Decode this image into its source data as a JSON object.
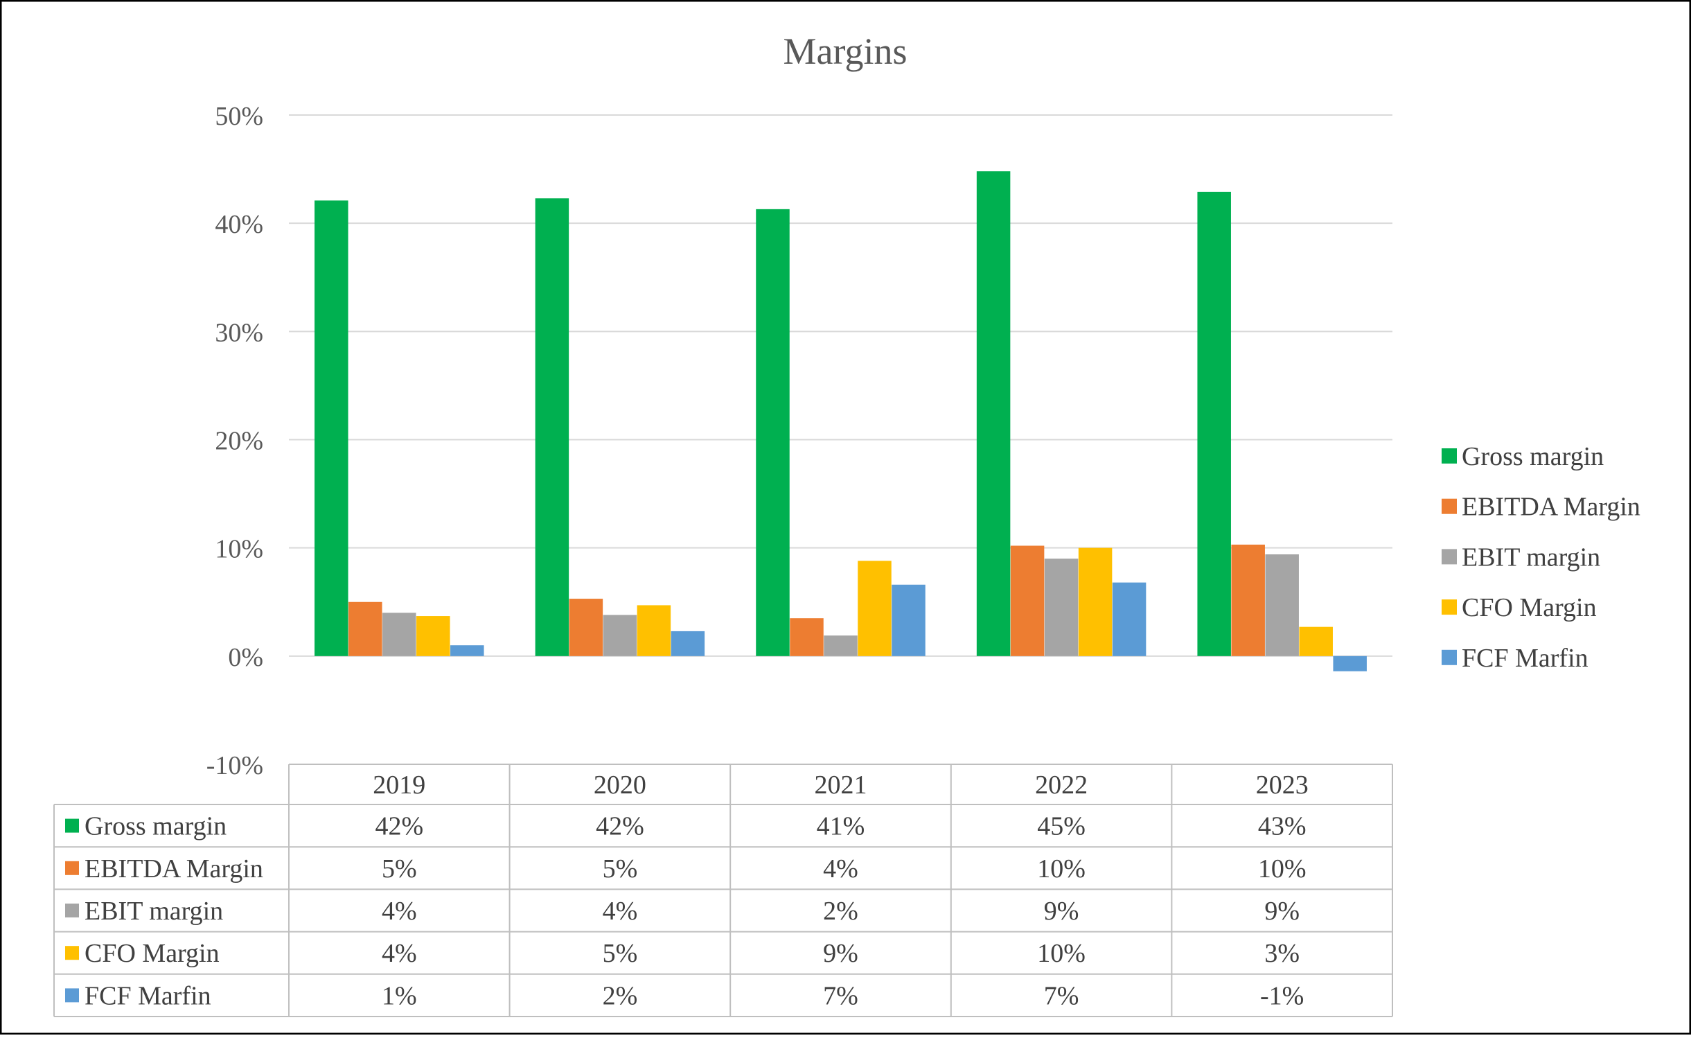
{
  "chart_data": {
    "type": "bar",
    "title": "Margins",
    "categories": [
      "2019",
      "2020",
      "2021",
      "2022",
      "2023"
    ],
    "series": [
      {
        "name": "Gross margin",
        "color": "#00B050",
        "values": [
          42.1,
          42.3,
          41.3,
          44.8,
          42.9
        ],
        "table_labels": [
          "42%",
          "42%",
          "41%",
          "45%",
          "43%"
        ]
      },
      {
        "name": "EBITDA Margin",
        "color": "#ED7D31",
        "values": [
          5.0,
          5.3,
          3.5,
          10.2,
          10.3
        ],
        "table_labels": [
          "5%",
          "5%",
          "4%",
          "10%",
          "10%"
        ]
      },
      {
        "name": "EBIT margin",
        "color": "#A5A5A5",
        "values": [
          4.0,
          3.8,
          1.9,
          9.0,
          9.4
        ],
        "table_labels": [
          "4%",
          "4%",
          "2%",
          "9%",
          "9%"
        ]
      },
      {
        "name": "CFO Margin",
        "color": "#FFC000",
        "values": [
          3.7,
          4.7,
          8.8,
          10.0,
          2.7
        ],
        "table_labels": [
          "4%",
          "5%",
          "9%",
          "10%",
          "3%"
        ]
      },
      {
        "name": "FCF Marfin",
        "color": "#5B9BD5",
        "values": [
          1.0,
          2.3,
          6.6,
          6.8,
          -1.4
        ],
        "table_labels": [
          "1%",
          "2%",
          "7%",
          "7%",
          "-1%"
        ]
      }
    ],
    "ylim": [
      -10,
      50
    ],
    "y_ticks": [
      50,
      40,
      30,
      20,
      10,
      0,
      -10
    ],
    "y_tick_labels": [
      "50%",
      "40%",
      "30%",
      "20%",
      "10%",
      "0%",
      "-10%"
    ],
    "xlabel": "",
    "ylabel": "",
    "grid": true,
    "legend_position": "right",
    "data_table": true
  }
}
